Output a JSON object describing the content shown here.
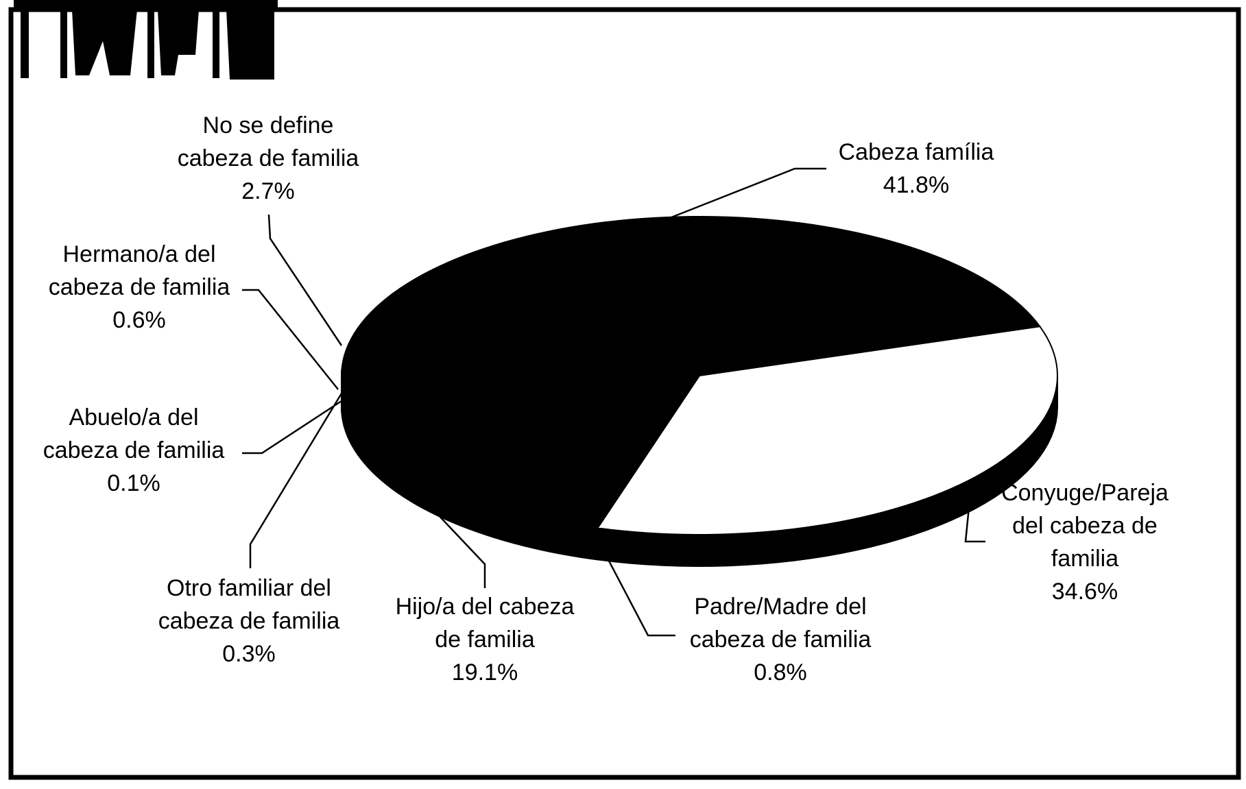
{
  "chart_data": {
    "type": "pie3d",
    "categories": [
      [
        "Cabeza família"
      ],
      [
        "Conyuge/Pareja",
        "del cabeza de",
        "familia"
      ],
      [
        "Padre/Madre del",
        "cabeza de familia"
      ],
      [
        "Hijo/a del cabeza",
        "de familia"
      ],
      [
        "Otro familiar del",
        "cabeza de familia"
      ],
      [
        "Abuelo/a del",
        "cabeza de familia"
      ],
      [
        "Hermano/a del",
        "cabeza de familia"
      ],
      [
        "No se define",
        "cabeza de familia"
      ]
    ],
    "values": [
      41.8,
      34.6,
      0.8,
      19.1,
      0.3,
      0.1,
      0.6,
      2.7
    ],
    "value_labels": [
      "41.8%",
      "34.6%",
      "0.8%",
      "19.1%",
      "0.3%",
      "0.1%",
      "0.6%",
      "2.7%"
    ],
    "colors": [
      "#000000",
      "#ffffff",
      "#000000",
      "#000000",
      "#000000",
      "#000000",
      "#000000",
      "#000000"
    ]
  }
}
